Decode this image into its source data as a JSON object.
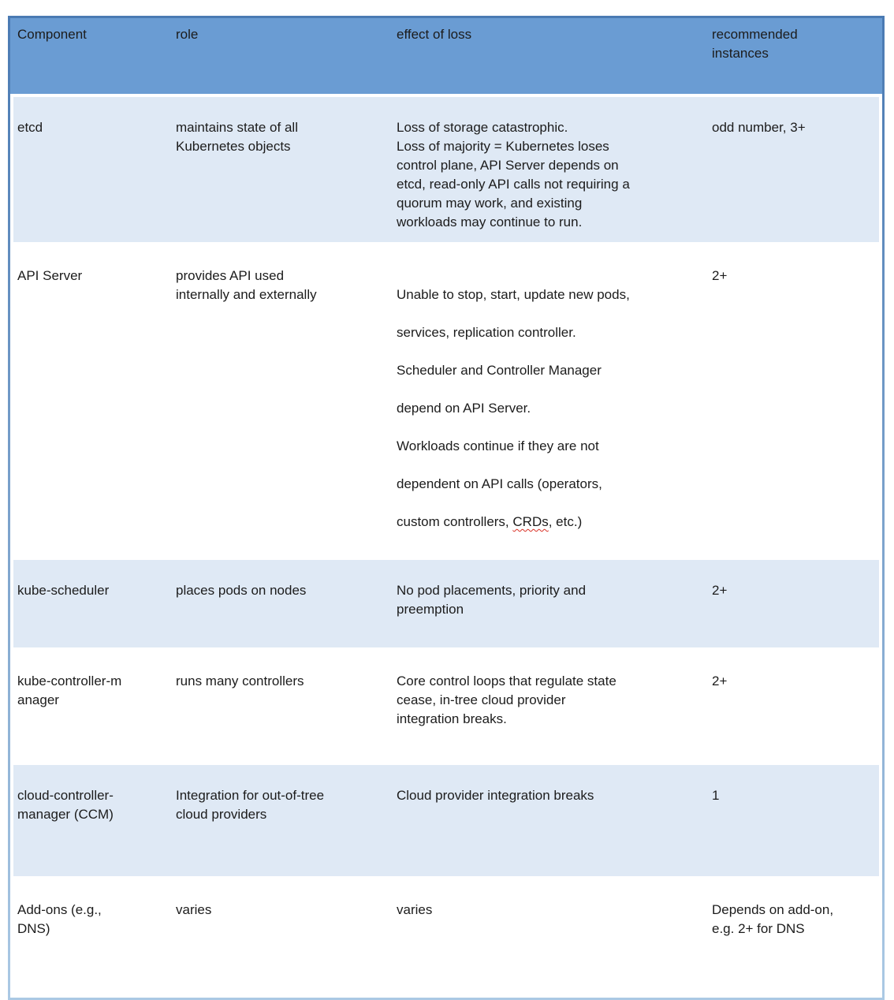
{
  "colors": {
    "header_bg": "#6a9cd3",
    "alt_row_bg": "#dfe9f5",
    "plain_row_bg": "#ffffff",
    "border_top": "#4a7ab3",
    "border_bottom": "#abc9e4",
    "spellcheck_squiggle": "#d93025",
    "text": "#1c1c1c"
  },
  "table": {
    "headers": [
      "Component",
      "role",
      "effect of loss",
      [
        "recommended",
        "instances"
      ]
    ],
    "rows": [
      {
        "component": "etcd",
        "role": [
          "maintains state of all",
          "Kubernetes objects"
        ],
        "effect": [
          "Loss of storage catastrophic.",
          "Loss of majority = Kubernetes loses",
          "control plane, API Server depends on",
          "etcd, read-only API calls not requiring a",
          "quorum may work, and existing",
          "workloads may continue to run."
        ],
        "instances": "odd number, 3+"
      },
      {
        "component": "API Server",
        "role": [
          "provides API used",
          "internally and externally"
        ],
        "effect_lines": [
          "Unable to stop, start, update new pods,",
          "services, replication controller.",
          "Scheduler and Controller Manager",
          "depend on API Server.",
          "Workloads continue if they are not",
          "dependent on API calls (operators,"
        ],
        "effect_last_pre": "custom controllers, ",
        "effect_misspelled_word": "CRDs",
        "effect_last_post": ", etc.)",
        "instances": "2+"
      },
      {
        "component": "kube-scheduler",
        "role": "places pods on nodes",
        "effect": [
          "No pod placements, priority and",
          "preemption"
        ],
        "instances": "2+"
      },
      {
        "component": [
          "kube-controller-m",
          "anager"
        ],
        "role": "runs many controllers",
        "effect": [
          "Core control loops that regulate state",
          "cease, in-tree cloud provider",
          "integration breaks."
        ],
        "instances": "2+"
      },
      {
        "component": [
          "cloud-controller-",
          "manager (CCM)"
        ],
        "role": [
          "Integration for out-of-tree",
          "cloud providers"
        ],
        "effect": "Cloud provider integration breaks",
        "instances": "1"
      },
      {
        "component": [
          "Add-ons (e.g.,",
          "DNS)"
        ],
        "role": "varies",
        "effect": "varies",
        "instances": [
          "Depends on add-on,",
          "e.g. 2+ for DNS"
        ]
      }
    ]
  }
}
